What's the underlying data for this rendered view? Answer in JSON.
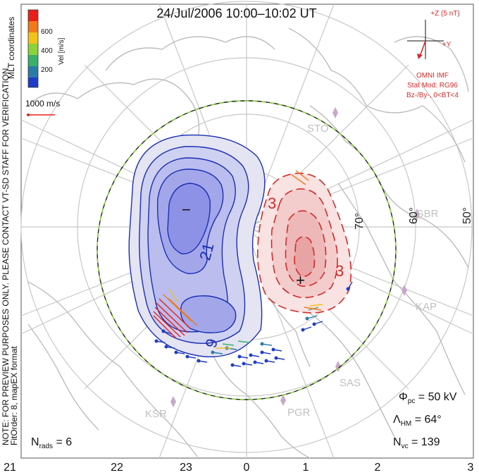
{
  "title": "24/Jul/2006  10:00–10:02  UT",
  "coordinates_label": "MLT coordinates",
  "color_bar": {
    "label": "Vel [m/s]",
    "ticks": [
      "600",
      "400",
      "200"
    ],
    "colors": [
      "#e8201a",
      "#f07a1a",
      "#f2c21a",
      "#8cd23a",
      "#39b06a",
      "#2a7aa8",
      "#1e3cc8"
    ]
  },
  "velocity_scale": {
    "label": "1000 m/s"
  },
  "imf": {
    "bz_label": "+Z (5 nT)",
    "by_label": "+Y",
    "source": "OMNI IMF",
    "stat_mod": "Stat Mod: RG96",
    "condition": "Bz-/By-, 0<BT<4"
  },
  "stations": [
    "STO",
    "GBR",
    "KAP",
    "SAS",
    "PGR",
    "KSR"
  ],
  "latitude_labels": [
    "70°",
    "60°",
    "50°"
  ],
  "contour_labels": {
    "neg_inner": "−",
    "neg_value": "21",
    "neg_outer": "9",
    "pos_inner": "+",
    "pos_value": "3",
    "pos_outer": "3"
  },
  "note": "NOTE: FOR PREVIEW PURPOSES ONLY. PLEASE CONTACT VT-SD STAFF FOR VERIFICATION.",
  "fitorder": "FitOrder: 8,  mapEX format",
  "stats": {
    "phi_pc": "Φ",
    "phi_sub": "pc",
    "phi_value": " = 50 kV",
    "lambda": "Λ",
    "lambda_sub": "HM",
    "lambda_value": " = 64°",
    "nvc": "N",
    "nvc_sub": "vc",
    "nvc_value": " = 139",
    "nrads": "N",
    "nrads_sub": "rads",
    "nrads_value": " = 6"
  },
  "mlt_labels": [
    "21",
    "22",
    "23",
    "0",
    "1",
    "2",
    "3"
  ],
  "colors": {
    "negative": "#1b2fb4",
    "positive": "#d42a2a",
    "grid": "#c8c8c8",
    "coast": "#bdbdbd",
    "heppner": "#8cd23a"
  }
}
